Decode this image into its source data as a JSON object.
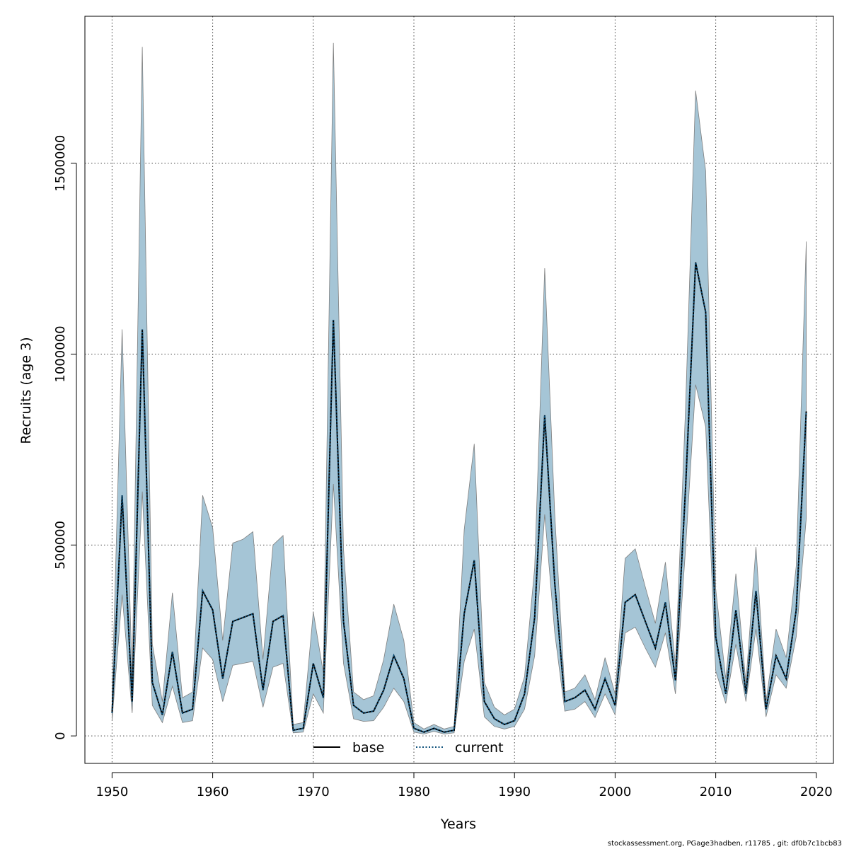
{
  "footer_text": "stockassessment.org, PGage3hadben, r11785 , git: df0b7c1bcb83",
  "chart_data": {
    "type": "line",
    "title": "",
    "xlabel": "Years",
    "ylabel": "Recruits (age 3)",
    "xlim": [
      1947.3,
      2021.7
    ],
    "ylim": [
      -72000,
      1885000
    ],
    "x_ticks": [
      1950,
      1960,
      1970,
      1980,
      1990,
      2000,
      2010,
      2020
    ],
    "y_ticks": [
      0,
      500000,
      1000000,
      1500000
    ],
    "x_tick_labels": [
      "1950",
      "1960",
      "1970",
      "1980",
      "1990",
      "2000",
      "2010",
      "2020"
    ],
    "y_tick_labels": [
      "0",
      "500000",
      "1000000",
      "1500000"
    ],
    "grid": true,
    "legend_position": "bottom",
    "legend": [
      {
        "label": "base",
        "style": "solid",
        "color": "#000000"
      },
      {
        "label": "current",
        "style": "dotted",
        "color": "#0b4f7a"
      }
    ],
    "band_color": "#a5c5d6",
    "band_edge_color": "#7f7f7f",
    "x": [
      1950,
      1951,
      1952,
      1953,
      1954,
      1955,
      1956,
      1957,
      1958,
      1959,
      1960,
      1961,
      1962,
      1963,
      1964,
      1965,
      1966,
      1967,
      1968,
      1969,
      1970,
      1971,
      1972,
      1973,
      1974,
      1975,
      1976,
      1977,
      1978,
      1979,
      1980,
      1981,
      1982,
      1983,
      1984,
      1985,
      1986,
      1987,
      1988,
      1989,
      1990,
      1991,
      1992,
      1993,
      1994,
      1995,
      1996,
      1997,
      1998,
      1999,
      2000,
      2001,
      2002,
      2003,
      2004,
      2005,
      2006,
      2007,
      2008,
      2009,
      2010,
      2011,
      2012,
      2013,
      2014,
      2015,
      2016,
      2017,
      2018,
      2019
    ],
    "series": [
      {
        "name": "base",
        "values": [
          60000,
          630000,
          90000,
          1065000,
          140000,
          55000,
          220000,
          60000,
          70000,
          380000,
          330000,
          150000,
          300000,
          310000,
          320000,
          120000,
          300000,
          315000,
          15000,
          20000,
          190000,
          100000,
          1090000,
          300000,
          80000,
          60000,
          65000,
          120000,
          210000,
          150000,
          20000,
          10000,
          20000,
          10000,
          15000,
          320000,
          460000,
          90000,
          45000,
          30000,
          40000,
          110000,
          310000,
          840000,
          400000,
          90000,
          100000,
          120000,
          70000,
          150000,
          80000,
          350000,
          370000,
          300000,
          230000,
          350000,
          145000,
          650000,
          1240000,
          1110000,
          260000,
          110000,
          330000,
          110000,
          380000,
          70000,
          210000,
          150000,
          330000,
          850000
        ]
      },
      {
        "name": "current",
        "values": [
          60000,
          630000,
          90000,
          1065000,
          140000,
          55000,
          220000,
          60000,
          70000,
          380000,
          330000,
          150000,
          300000,
          310000,
          320000,
          120000,
          300000,
          315000,
          15000,
          20000,
          190000,
          100000,
          1090000,
          300000,
          80000,
          60000,
          65000,
          120000,
          210000,
          150000,
          20000,
          10000,
          20000,
          10000,
          15000,
          320000,
          460000,
          90000,
          45000,
          30000,
          40000,
          110000,
          310000,
          840000,
          400000,
          90000,
          100000,
          120000,
          70000,
          150000,
          80000,
          350000,
          370000,
          300000,
          230000,
          350000,
          145000,
          650000,
          1240000,
          1110000,
          260000,
          110000,
          330000,
          110000,
          380000,
          70000,
          210000,
          150000,
          330000,
          850000
        ]
      }
    ],
    "band_lower": [
      40000,
      370000,
      60000,
      640000,
      80000,
      35000,
      130000,
      35000,
      40000,
      230000,
      200000,
      90000,
      185000,
      190000,
      195000,
      75000,
      180000,
      190000,
      8000,
      10000,
      110000,
      60000,
      660000,
      190000,
      45000,
      38000,
      40000,
      75000,
      125000,
      90000,
      10000,
      5000,
      12000,
      5000,
      8000,
      195000,
      280000,
      50000,
      25000,
      18000,
      25000,
      70000,
      210000,
      580000,
      270000,
      65000,
      70000,
      90000,
      48000,
      110000,
      55000,
      270000,
      285000,
      230000,
      180000,
      270000,
      110000,
      490000,
      920000,
      810000,
      170000,
      85000,
      240000,
      90000,
      280000,
      50000,
      160000,
      125000,
      260000,
      570000
    ],
    "band_upper": [
      100000,
      1065000,
      150000,
      1805000,
      240000,
      90000,
      375000,
      100000,
      115000,
      630000,
      545000,
      250000,
      505000,
      515000,
      535000,
      200000,
      500000,
      525000,
      30000,
      35000,
      325000,
      165000,
      1815000,
      490000,
      115000,
      95000,
      105000,
      200000,
      345000,
      250000,
      35000,
      18000,
      30000,
      18000,
      25000,
      540000,
      765000,
      140000,
      75000,
      55000,
      70000,
      155000,
      440000,
      1225000,
      580000,
      115000,
      125000,
      160000,
      95000,
      205000,
      110000,
      465000,
      490000,
      390000,
      295000,
      455000,
      185000,
      860000,
      1690000,
      1480000,
      385000,
      150000,
      425000,
      140000,
      495000,
      90000,
      280000,
      205000,
      445000,
      1295000
    ]
  }
}
